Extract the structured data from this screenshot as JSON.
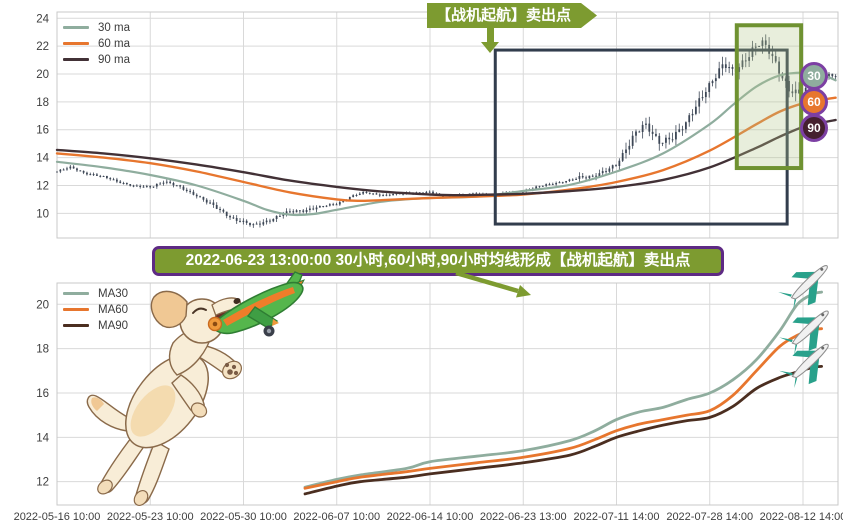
{
  "page": {
    "background": "#ffffff"
  },
  "colors": {
    "ma30": "#8fad9e",
    "ma60": "#e7762e",
    "ma90_top": "#423136",
    "ma90_bottom": "#4b2e20",
    "candle": "#3c4655",
    "grid": "#d9d9d9",
    "plot_border": "#c9c9c9",
    "axis_text": "#3e3e3e",
    "annotation_green": "#7d9b30",
    "annotation_border_purple": "#5e2a84",
    "navy_box": "#323d4d",
    "green_box_stroke": "#6f9231",
    "green_box_fill": "rgba(178,198,140,0.3)",
    "badge_border": "#7c3fa3",
    "plane_teal": "#29a18b",
    "plane_body": "#f1f1f1"
  },
  "annotations": {
    "ribbon_label": "【战机起航】卖出点",
    "callout_label": "2022-06-23 13:00:00 30小时,60小时,90小时均线形成【战机起航】卖出点"
  },
  "decorations": {
    "dog": "puppy-jumping-illustration",
    "toy_plane": "green-toy-plane-illustration",
    "line_end_marker": "airplane-icon"
  },
  "badges": [
    {
      "label": "30",
      "bg": "#8fad9e"
    },
    {
      "label": "60",
      "bg": "#e7762e"
    },
    {
      "label": "90",
      "bg": "#45202f"
    }
  ],
  "top_chart": {
    "legend": [
      {
        "label": "30 ma",
        "color": "#8fad9e"
      },
      {
        "label": "60 ma",
        "color": "#e7762e"
      },
      {
        "label": "90 ma",
        "color": "#423136"
      }
    ]
  },
  "bottom_chart": {
    "legend": [
      {
        "label": "MA30",
        "color": "#8fad9e"
      },
      {
        "label": "MA60",
        "color": "#e7762e"
      },
      {
        "label": "MA90",
        "color": "#4b2e20"
      }
    ]
  },
  "x_labels": [
    "2022-05-16 10:00",
    "2022-05-23 10:00",
    "2022-05-30 10:00",
    "2022-06-07 10:00",
    "2022-06-14 10:00",
    "2022-06-23 13:00",
    "2022-07-11 14:00",
    "2022-07-28 14:00",
    "2022-08-12 14:00"
  ],
  "chart_data": [
    {
      "type": "candlestick",
      "title": "",
      "x_tick_labels": [
        "2022-05-16 10:00",
        "2022-05-23 10:00",
        "2022-05-30 10:00",
        "2022-06-07 10:00",
        "2022-06-14 10:00",
        "2022-06-23 13:00",
        "2022-07-11 14:00",
        "2022-07-28 14:00",
        "2022-08-12 14:00"
      ],
      "y_ticks": [
        24,
        22,
        20,
        18,
        16,
        14,
        12,
        10
      ],
      "ylim": [
        8.5,
        24.5
      ],
      "grid": true,
      "legend_position": "upper-left",
      "price_close_path": {
        "t": [
          0,
          0.15,
          0.3,
          0.5,
          0.7,
          0.85,
          1.0,
          1.15,
          1.3,
          1.5,
          1.7,
          1.9,
          2.1,
          2.3,
          2.5,
          2.7,
          2.85,
          3.0,
          3.15,
          3.3,
          3.5,
          3.7,
          3.85,
          4.0,
          4.15,
          4.3,
          4.5,
          4.7,
          4.85,
          5.0,
          5.15,
          5.3,
          5.5,
          5.7,
          5.85,
          6.0,
          6.1,
          6.2,
          6.3,
          6.45,
          6.6,
          6.75,
          6.85,
          6.95,
          7.05,
          7.15,
          7.25,
          7.35,
          7.45,
          7.55,
          7.65,
          7.75,
          7.85,
          7.95,
          8.05,
          8.15,
          8.25,
          8.35
        ],
        "v": [
          13.0,
          13.3,
          12.9,
          12.6,
          12.2,
          11.9,
          11.9,
          12.3,
          11.9,
          11.3,
          10.4,
          9.6,
          9.1,
          9.6,
          10.1,
          10.3,
          10.5,
          10.7,
          11.2,
          11.5,
          11.3,
          11.4,
          11.5,
          11.5,
          11.2,
          11.3,
          11.4,
          11.3,
          11.5,
          11.6,
          11.9,
          12.1,
          12.4,
          12.6,
          13.0,
          13.4,
          14.6,
          15.9,
          16.4,
          15.0,
          15.6,
          16.4,
          17.6,
          18.9,
          19.8,
          20.6,
          20.1,
          20.9,
          21.7,
          22.2,
          21.5,
          20.3,
          18.9,
          18.4,
          19.0,
          19.6,
          19.9,
          19.8
        ]
      },
      "series": [
        {
          "name": "30 ma",
          "color": "#8fad9e",
          "width": 2.2,
          "t": [
            0,
            0.5,
            1,
            1.5,
            2,
            2.25,
            2.5,
            2.75,
            3,
            3.5,
            4,
            4.5,
            5,
            5.5,
            6,
            6.5,
            7,
            7.25,
            7.5,
            7.75,
            8,
            8.2,
            8.35
          ],
          "v": [
            13.7,
            13.3,
            12.75,
            12.0,
            10.9,
            10.25,
            9.9,
            9.95,
            10.25,
            10.85,
            11.1,
            11.2,
            11.6,
            12.05,
            13.0,
            14.3,
            16.4,
            17.8,
            19.1,
            19.9,
            20.1,
            19.95,
            19.55
          ]
        },
        {
          "name": "60 ma",
          "color": "#e7762e",
          "width": 2.4,
          "t": [
            0,
            0.5,
            1,
            1.5,
            2,
            2.5,
            3,
            3.25,
            3.5,
            4,
            4.5,
            5,
            5.5,
            6,
            6.5,
            7,
            7.5,
            7.75,
            8,
            8.2,
            8.35
          ],
          "v": [
            14.3,
            14.0,
            13.6,
            13.0,
            12.25,
            11.5,
            11.0,
            10.9,
            10.95,
            11.1,
            11.2,
            11.35,
            11.7,
            12.25,
            13.1,
            14.5,
            16.4,
            17.3,
            17.9,
            18.15,
            18.3
          ]
        },
        {
          "name": "90 ma",
          "color": "#423136",
          "width": 2.4,
          "t": [
            0,
            0.5,
            1,
            1.5,
            2,
            2.5,
            3,
            3.5,
            4,
            4.25,
            4.5,
            5,
            5.5,
            6,
            6.5,
            7,
            7.5,
            7.75,
            8,
            8.2,
            8.35
          ],
          "v": [
            14.55,
            14.3,
            13.95,
            13.5,
            12.95,
            12.35,
            11.9,
            11.55,
            11.35,
            11.3,
            11.32,
            11.4,
            11.6,
            11.9,
            12.4,
            13.3,
            14.7,
            15.5,
            16.2,
            16.5,
            16.7
          ]
        }
      ],
      "highlight_boxes": [
        {
          "name": "navy-box",
          "t": [
            4.7,
            7.83
          ],
          "v": [
            9.23,
            21.72
          ],
          "stroke": "#323d4d",
          "fill": "none",
          "stroke_width": 3
        },
        {
          "name": "green-box",
          "t": [
            7.29,
            7.98
          ],
          "v": [
            13.25,
            23.5
          ],
          "stroke": "#6f9231",
          "fill": "rgba(178,198,140,0.3)",
          "stroke_width": 4
        }
      ]
    },
    {
      "type": "line",
      "title": "",
      "x_tick_labels": [
        "2022-05-16 10:00",
        "2022-05-23 10:00",
        "2022-05-30 10:00",
        "2022-06-07 10:00",
        "2022-06-14 10:00",
        "2022-06-23 13:00",
        "2022-07-11 14:00",
        "2022-07-28 14:00",
        "2022-08-12 14:00"
      ],
      "y_ticks": [
        20,
        18,
        16,
        14,
        12
      ],
      "ylim": [
        10.9,
        21.2
      ],
      "grid": true,
      "legend_position": "upper-left",
      "series": [
        {
          "name": "MA30",
          "color": "#8fad9e",
          "width": 2.8,
          "t": [
            2.66,
            3,
            3.25,
            3.75,
            4,
            4.5,
            5,
            5.5,
            5.77,
            6,
            6.25,
            6.5,
            6.75,
            7,
            7.25,
            7.5,
            7.75,
            7.94,
            8.1,
            8.2
          ],
          "v": [
            11.75,
            12.1,
            12.3,
            12.6,
            12.9,
            13.15,
            13.4,
            13.85,
            14.3,
            14.8,
            15.15,
            15.35,
            15.7,
            16.0,
            16.6,
            17.5,
            18.8,
            20.0,
            20.45,
            20.55
          ]
        },
        {
          "name": "MA60",
          "color": "#e7762e",
          "width": 2.8,
          "t": [
            2.66,
            3,
            3.25,
            3.75,
            4,
            4.5,
            5,
            5.5,
            5.77,
            6,
            6.25,
            6.5,
            6.75,
            7,
            7.25,
            7.5,
            7.75,
            7.94,
            8.1,
            8.2
          ],
          "v": [
            11.7,
            12.0,
            12.2,
            12.45,
            12.6,
            12.85,
            13.1,
            13.5,
            13.9,
            14.3,
            14.6,
            14.8,
            15.0,
            15.2,
            15.9,
            17.0,
            18.1,
            18.6,
            18.85,
            18.9
          ]
        },
        {
          "name": "MA90",
          "color": "#4b2e20",
          "width": 2.8,
          "t": [
            2.66,
            3,
            3.25,
            3.75,
            4,
            4.5,
            5,
            5.5,
            5.77,
            6,
            6.25,
            6.5,
            6.75,
            7,
            7.25,
            7.5,
            7.75,
            7.94,
            8.1,
            8.2
          ],
          "v": [
            11.45,
            11.8,
            12.0,
            12.2,
            12.35,
            12.6,
            12.85,
            13.2,
            13.6,
            14.0,
            14.3,
            14.55,
            14.75,
            14.9,
            15.4,
            16.2,
            16.7,
            16.95,
            17.15,
            17.2
          ]
        }
      ],
      "plane_markers": [
        {
          "t": 8.09,
          "v": 21.0
        },
        {
          "t": 8.1,
          "v": 18.95
        },
        {
          "t": 8.1,
          "v": 17.45
        }
      ]
    }
  ]
}
